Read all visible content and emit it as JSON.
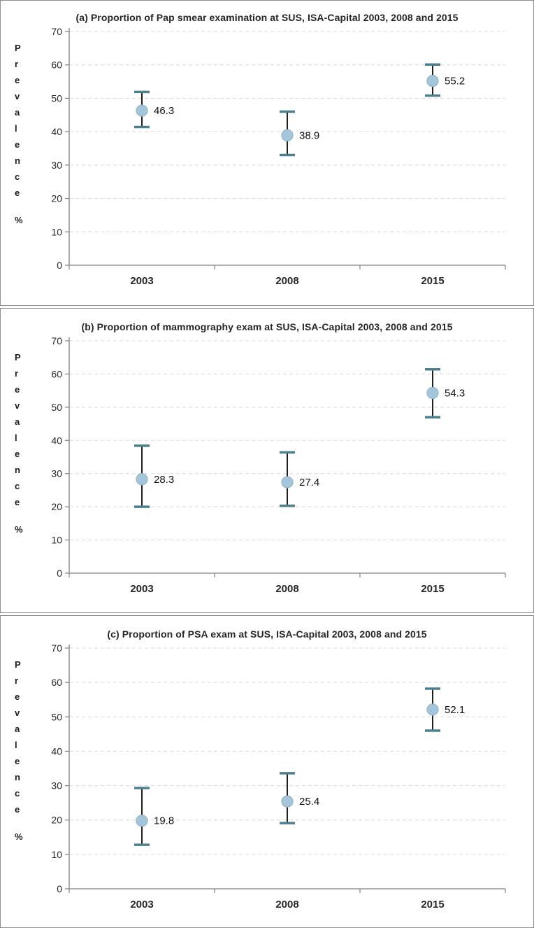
{
  "figure": {
    "y_axis_label": "Prevalence",
    "y_axis_unit": "%"
  },
  "chart_data": [
    {
      "type": "scatter",
      "title": "(a) Proportion of Pap smear examination at SUS, ISA-Capital 2003, 2008 and 2015",
      "categories": [
        "2003",
        "2008",
        "2015"
      ],
      "series": [
        {
          "name": "Prevalence %",
          "values": [
            46.3,
            38.9,
            55.2
          ],
          "ci_low": [
            41.4,
            33.0,
            50.8
          ],
          "ci_high": [
            51.9,
            46.0,
            60.1
          ]
        }
      ],
      "ylim": [
        0,
        70
      ],
      "yticks": [
        0,
        10,
        20,
        30,
        40,
        50,
        60,
        70
      ],
      "ylabel": "Prevalence",
      "ylabel_unit": "%",
      "xlabel": "",
      "grid": "horizontal-dashed",
      "legend": "none",
      "point_label_format": "one-decimal"
    },
    {
      "type": "scatter",
      "title": "(b) Proportion of mammography exam at SUS, ISA-Capital 2003, 2008 and 2015",
      "categories": [
        "2003",
        "2008",
        "2015"
      ],
      "series": [
        {
          "name": "Prevalence %",
          "values": [
            28.3,
            27.4,
            54.3
          ],
          "ci_low": [
            20.0,
            20.3,
            47.0
          ],
          "ci_high": [
            38.4,
            36.4,
            61.4
          ]
        }
      ],
      "ylim": [
        0,
        70
      ],
      "yticks": [
        0,
        10,
        20,
        30,
        40,
        50,
        60,
        70
      ],
      "ylabel": "Prevalence",
      "ylabel_unit": "%",
      "xlabel": "",
      "grid": "horizontal-dashed",
      "legend": "none",
      "point_label_format": "one-decimal"
    },
    {
      "type": "scatter",
      "title": "(c) Proportion of PSA exam at SUS, ISA-Capital 2003, 2008 and 2015",
      "categories": [
        "2003",
        "2008",
        "2015"
      ],
      "series": [
        {
          "name": "Prevalence %",
          "values": [
            19.8,
            25.4,
            52.1
          ],
          "ci_low": [
            12.8,
            19.1,
            46.0
          ],
          "ci_high": [
            29.3,
            33.6,
            58.2
          ]
        }
      ],
      "ylim": [
        0,
        70
      ],
      "yticks": [
        0,
        10,
        20,
        30,
        40,
        50,
        60,
        70
      ],
      "ylabel": "Prevalence",
      "ylabel_unit": "%",
      "xlabel": "",
      "grid": "horizontal-dashed",
      "legend": "none",
      "point_label_format": "one-decimal"
    }
  ],
  "colors": {
    "marker_fill": "#a5c6da",
    "marker_stroke": "#8fb6c9",
    "error_line": "#1f1f1f",
    "error_cap": "#4d808f",
    "grid": "#d9d9d9",
    "axis": "#808080",
    "tick_text": "#262626",
    "value_text": "#111111",
    "title_text": "#262626"
  }
}
